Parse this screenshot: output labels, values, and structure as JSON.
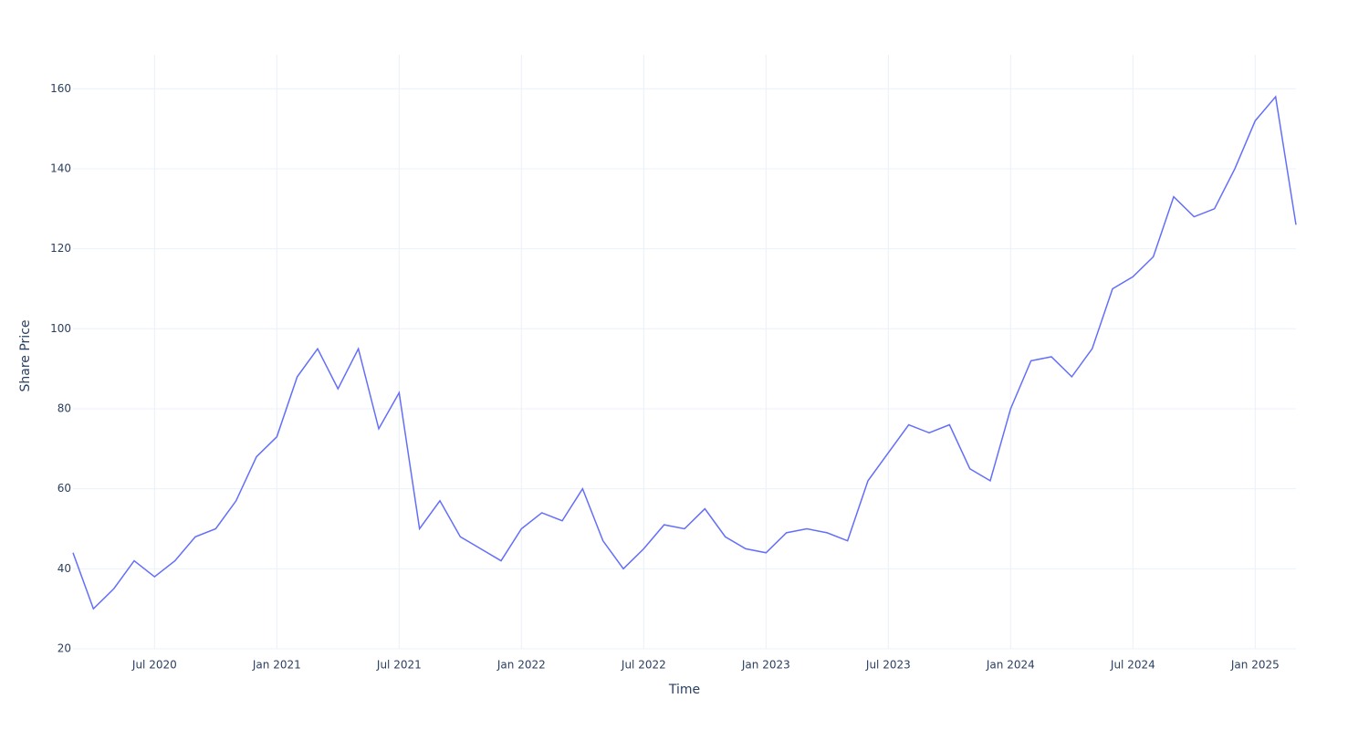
{
  "chart_data": {
    "type": "line",
    "x_label": "Time",
    "y_label": "Share Price",
    "x": [
      "2020-03",
      "2020-04",
      "2020-05",
      "2020-06",
      "2020-07",
      "2020-08",
      "2020-09",
      "2020-10",
      "2020-11",
      "2020-12",
      "2021-01",
      "2021-02",
      "2021-03",
      "2021-04",
      "2021-05",
      "2021-06",
      "2021-07",
      "2021-08",
      "2021-09",
      "2021-10",
      "2021-11",
      "2021-12",
      "2022-01",
      "2022-02",
      "2022-03",
      "2022-04",
      "2022-05",
      "2022-06",
      "2022-07",
      "2022-08",
      "2022-09",
      "2022-10",
      "2022-11",
      "2022-12",
      "2023-01",
      "2023-02",
      "2023-03",
      "2023-04",
      "2023-05",
      "2023-06",
      "2023-07",
      "2023-08",
      "2023-09",
      "2023-10",
      "2023-11",
      "2023-12",
      "2024-01",
      "2024-02",
      "2024-03",
      "2024-04",
      "2024-05",
      "2024-06",
      "2024-07",
      "2024-08",
      "2024-09",
      "2024-10",
      "2024-11",
      "2024-12",
      "2025-01",
      "2025-02",
      "2025-03"
    ],
    "series": [
      {
        "name": "Share Price",
        "color": "#636efa",
        "values": [
          44,
          30,
          35,
          42,
          38,
          42,
          48,
          50,
          57,
          68,
          73,
          88,
          95,
          85,
          95,
          75,
          84,
          50,
          57,
          48,
          45,
          42,
          50,
          54,
          52,
          60,
          47,
          40,
          45,
          51,
          50,
          55,
          48,
          45,
          44,
          49,
          50,
          49,
          47,
          62,
          69,
          76,
          74,
          76,
          65,
          62,
          80,
          92,
          93,
          88,
          95,
          110,
          113,
          118,
          133,
          128,
          130,
          140,
          152,
          158,
          126
        ]
      }
    ],
    "xlim": [
      "2020-03",
      "2025-03"
    ],
    "xticks": [
      {
        "value": "2020-07",
        "label": "Jul 2020"
      },
      {
        "value": "2021-01",
        "label": "Jan 2021"
      },
      {
        "value": "2021-07",
        "label": "Jul 2021"
      },
      {
        "value": "2022-01",
        "label": "Jan 2022"
      },
      {
        "value": "2022-07",
        "label": "Jul 2022"
      },
      {
        "value": "2023-01",
        "label": "Jan 2023"
      },
      {
        "value": "2023-07",
        "label": "Jul 2023"
      },
      {
        "value": "2024-01",
        "label": "Jan 2024"
      },
      {
        "value": "2024-07",
        "label": "Jul 2024"
      },
      {
        "value": "2025-01",
        "label": "Jan 2025"
      }
    ],
    "ylim": [
      20,
      168.5
    ],
    "yticks": [
      20,
      40,
      60,
      80,
      100,
      120,
      140,
      160
    ],
    "grid": true
  }
}
